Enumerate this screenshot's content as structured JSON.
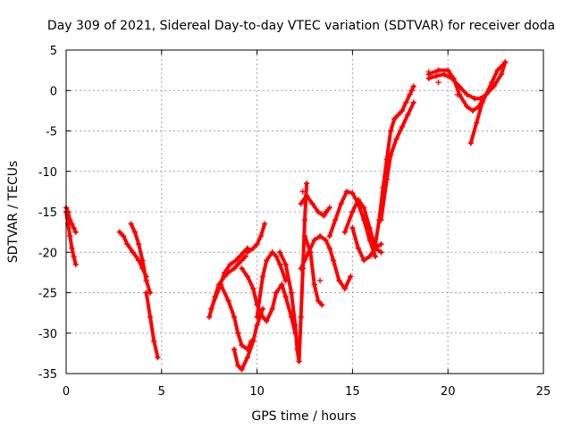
{
  "chart_data": {
    "type": "scatter",
    "title": "Day 309 of 2021, Sidereal Day-to-day VTEC variation (SDTVAR) for receiver doda",
    "xlabel": "GPS time / hours",
    "ylabel": "SDTVAR / TECUs",
    "xlim": [
      0,
      25
    ],
    "ylim": [
      -35,
      5
    ],
    "xticks": [
      0,
      5,
      10,
      15,
      20,
      25
    ],
    "yticks": [
      5,
      0,
      -5,
      -10,
      -15,
      -20,
      -25,
      -30,
      -35
    ],
    "grid": true,
    "marker": "+",
    "color": "#ff0000",
    "series": [
      {
        "name": "s1",
        "x": [
          0.0,
          0.1,
          0.2,
          0.3,
          0.4,
          0.5
        ],
        "y": [
          -15.0,
          -16.5,
          -18.0,
          -19.5,
          -20.5,
          -21.5
        ]
      },
      {
        "name": "s2",
        "x": [
          0.0,
          0.1,
          0.2,
          0.3,
          0.4,
          0.5
        ],
        "y": [
          -14.5,
          -15.0,
          -16.0,
          -16.5,
          -17.0,
          -17.5
        ]
      },
      {
        "name": "s3",
        "x": [
          2.8,
          3.0,
          3.2,
          3.5,
          3.8,
          4.0,
          4.2
        ],
        "y": [
          -17.5,
          -18.0,
          -19.0,
          -20.0,
          -21.0,
          -22.0,
          -23.0
        ]
      },
      {
        "name": "s4",
        "x": [
          3.4,
          3.6,
          3.8,
          4.0,
          4.2,
          4.4
        ],
        "y": [
          -16.5,
          -17.5,
          -19.0,
          -21.0,
          -23.5,
          -25.0
        ]
      },
      {
        "name": "s5",
        "x": [
          4.2,
          4.4,
          4.6,
          4.8
        ],
        "y": [
          -25.0,
          -28.0,
          -31.0,
          -33.0
        ]
      },
      {
        "name": "s6",
        "x": [
          7.5,
          7.8,
          8.0,
          8.3,
          8.5,
          8.8,
          9.0,
          9.2,
          9.4
        ],
        "y": [
          -28.0,
          -25.5,
          -24.0,
          -23.0,
          -22.5,
          -22.0,
          -21.5,
          -21.0,
          -20.5
        ]
      },
      {
        "name": "s7",
        "x": [
          7.6,
          8.0,
          8.3,
          8.6,
          8.9,
          9.1,
          9.3,
          9.5
        ],
        "y": [
          -27.0,
          -24.5,
          -22.5,
          -21.5,
          -21.0,
          -20.5,
          -20.0,
          -19.5
        ]
      },
      {
        "name": "s8",
        "x": [
          8.1,
          8.5,
          8.8,
          9.0,
          9.2,
          9.5,
          9.7
        ],
        "y": [
          -24.0,
          -26.0,
          -28.0,
          -30.0,
          -31.5,
          -32.0,
          -31.0
        ]
      },
      {
        "name": "s9",
        "x": [
          8.8,
          9.0,
          9.2,
          9.5,
          9.8,
          10.0,
          10.3
        ],
        "y": [
          -32.0,
          -34.0,
          -34.5,
          -33.0,
          -31.0,
          -29.0,
          -27.0
        ]
      },
      {
        "name": "s10",
        "x": [
          9.2,
          9.5,
          9.8,
          10.0,
          10.3,
          10.5,
          10.8,
          11.0,
          11.3,
          11.5,
          11.8,
          12.0
        ],
        "y": [
          -22.0,
          -23.0,
          -24.5,
          -26.5,
          -28.0,
          -28.5,
          -27.0,
          -25.0,
          -24.0,
          -25.5,
          -28.0,
          -30.0
        ]
      },
      {
        "name": "s11",
        "x": [
          10.0,
          10.3,
          10.5,
          10.8,
          11.0,
          11.2,
          11.5
        ],
        "y": [
          -28.0,
          -23.0,
          -21.0,
          -20.0,
          -20.5,
          -21.5,
          -23.5
        ]
      },
      {
        "name": "s12",
        "x": [
          9.5,
          9.8,
          10.0,
          10.2,
          10.4
        ],
        "y": [
          -20.0,
          -19.5,
          -19.0,
          -18.0,
          -16.5
        ]
      },
      {
        "name": "s13",
        "x": [
          11.2,
          11.5,
          11.8,
          12.0,
          12.1,
          12.2,
          12.3,
          12.4,
          12.5,
          12.6
        ],
        "y": [
          -20.0,
          -21.5,
          -25.0,
          -29.0,
          -32.0,
          -33.5,
          -28.0,
          -22.0,
          -16.0,
          -11.5
        ]
      },
      {
        "name": "s14",
        "x": [
          12.3,
          12.6,
          12.9,
          13.2,
          13.5,
          13.8
        ],
        "y": [
          -14.0,
          -13.0,
          -14.0,
          -15.0,
          -15.5,
          -14.5
        ]
      },
      {
        "name": "s15",
        "x": [
          12.5,
          12.8,
          13.0,
          13.2,
          13.4
        ],
        "y": [
          -18.0,
          -20.0,
          -24.0,
          -26.0,
          -26.5
        ]
      },
      {
        "name": "s16",
        "x": [
          12.3,
          12.7,
          13.0,
          13.3,
          13.6,
          13.8,
          14.0,
          14.3,
          14.6,
          14.9
        ],
        "y": [
          -22.0,
          -20.0,
          -18.5,
          -18.0,
          -18.5,
          -19.5,
          -21.0,
          -23.5,
          -24.5,
          -23.0
        ]
      },
      {
        "name": "s17",
        "x": [
          13.8,
          14.1,
          14.4,
          14.7,
          15.0,
          15.3,
          15.6,
          15.9,
          16.2
        ],
        "y": [
          -18.0,
          -16.0,
          -14.0,
          -12.5,
          -12.7,
          -14.0,
          -16.0,
          -18.5,
          -20.5
        ]
      },
      {
        "name": "s18",
        "x": [
          14.6,
          15.0,
          15.3,
          15.6,
          15.9,
          16.2,
          16.5
        ],
        "y": [
          -17.5,
          -15.0,
          -13.5,
          -14.5,
          -17.0,
          -19.5,
          -20.0
        ]
      },
      {
        "name": "s19",
        "x": [
          15.0,
          15.3,
          15.6,
          15.9,
          16.2,
          16.5
        ],
        "y": [
          -17.0,
          -19.5,
          -21.0,
          -20.5,
          -19.5,
          -19.0
        ]
      },
      {
        "name": "s20",
        "x": [
          16.2,
          16.4,
          16.6,
          16.8,
          17.0,
          17.2,
          17.4,
          17.6,
          17.8,
          18.0,
          18.2
        ],
        "y": [
          -19.0,
          -16.0,
          -12.0,
          -8.5,
          -5.0,
          -3.5,
          -3.0,
          -2.5,
          -1.5,
          -0.5,
          0.5
        ]
      },
      {
        "name": "s21",
        "x": [
          16.5,
          16.8,
          17.0,
          17.3,
          17.6,
          17.9,
          18.2
        ],
        "y": [
          -16.0,
          -11.0,
          -8.0,
          -6.0,
          -4.5,
          -3.0,
          -1.5
        ]
      },
      {
        "name": "s22",
        "x": [
          19.0,
          19.4,
          19.8,
          20.2,
          20.6,
          21.0,
          21.4,
          21.7,
          22.0,
          22.4,
          22.8,
          23.0
        ],
        "y": [
          1.5,
          1.8,
          2.0,
          1.5,
          0.5,
          -0.5,
          -1.0,
          -1.0,
          -0.5,
          0.5,
          2.0,
          3.5
        ]
      },
      {
        "name": "s23",
        "x": [
          19.0,
          19.5,
          20.0,
          20.3,
          20.6,
          21.0,
          21.3,
          21.6,
          22.0
        ],
        "y": [
          2.0,
          2.5,
          2.5,
          1.5,
          -0.5,
          -2.0,
          -2.5,
          -2.0,
          -0.5
        ]
      },
      {
        "name": "s24",
        "x": [
          21.2,
          21.5,
          21.8,
          22.0,
          22.3,
          22.6,
          23.0
        ],
        "y": [
          -6.5,
          -4.0,
          -1.5,
          -0.5,
          1.0,
          2.5,
          3.5
        ]
      },
      {
        "name": "s25",
        "x": [
          12.4,
          13.3,
          13.6,
          18.1,
          19.0,
          19.5,
          20.5
        ],
        "y": [
          -12.5,
          -23.5,
          -15.0,
          0.0,
          2.3,
          1.0,
          -0.5
        ]
      }
    ]
  }
}
